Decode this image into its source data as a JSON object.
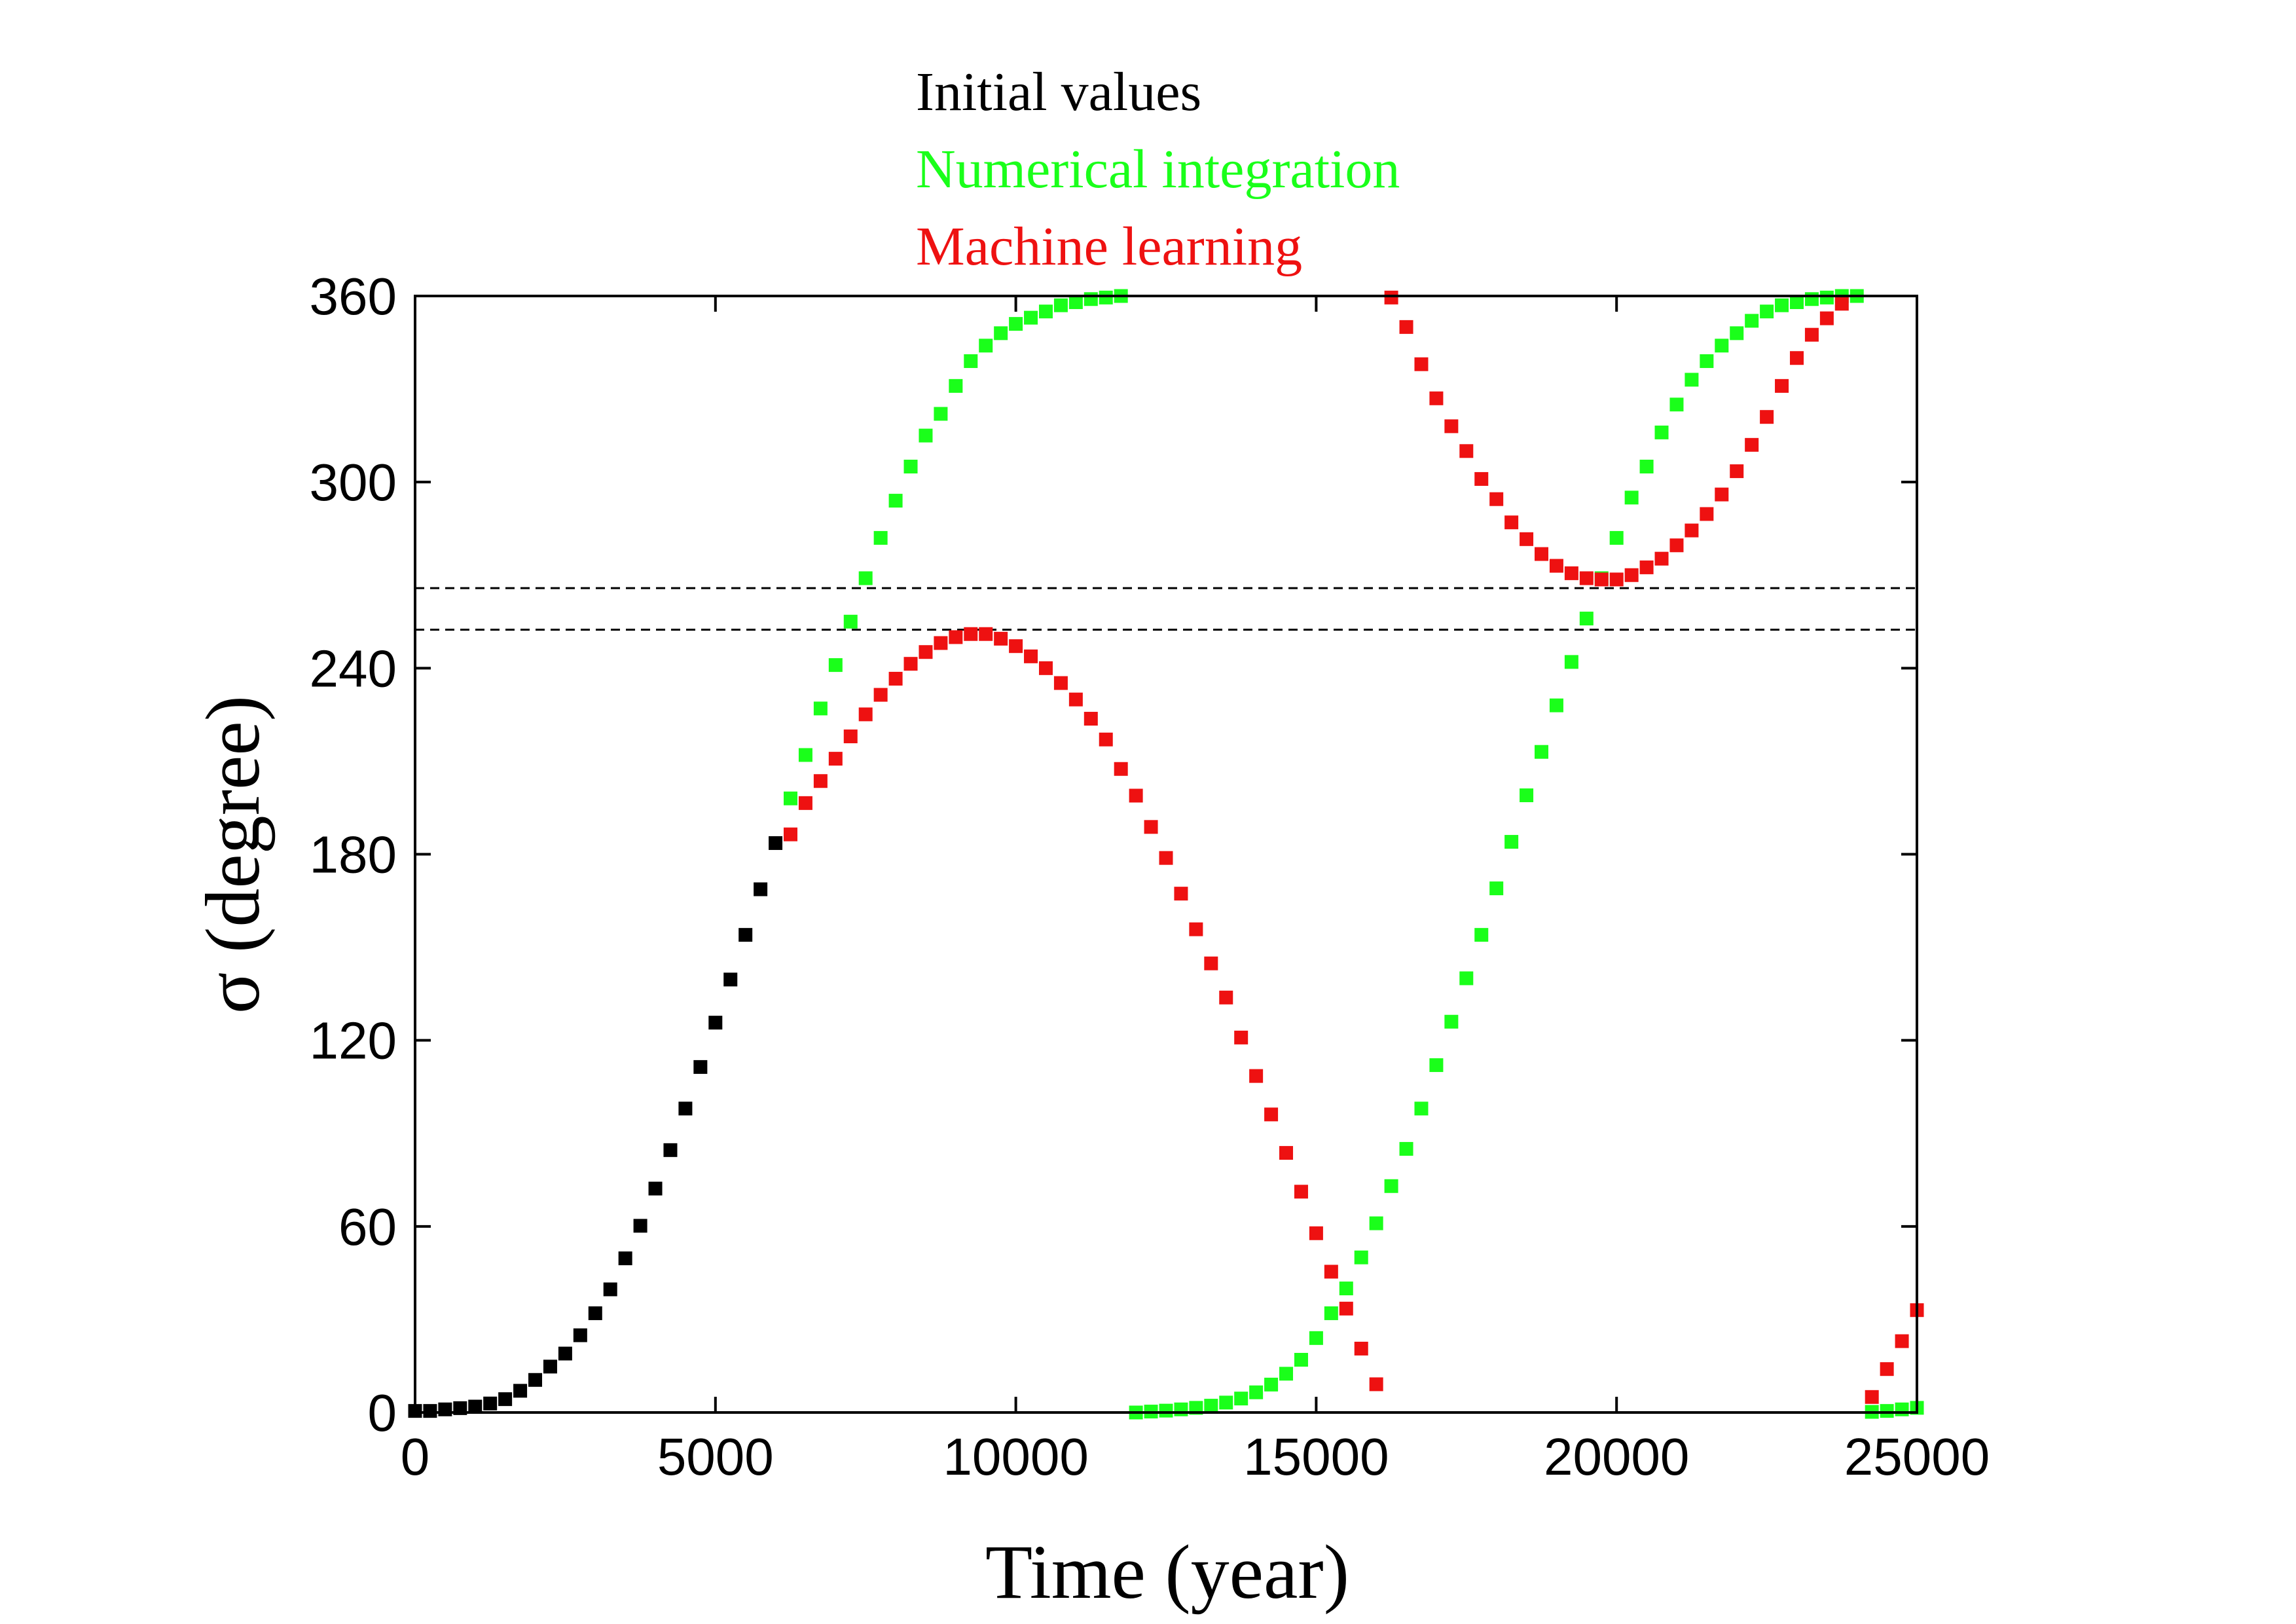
{
  "chart_data": {
    "type": "scatter",
    "x_label": "Time (year)",
    "y_label": "σ (degree)",
    "xlim": [
      0,
      25000
    ],
    "ylim": [
      0,
      360
    ],
    "xticks": [
      0,
      5000,
      10000,
      15000,
      20000,
      25000
    ],
    "yticks": [
      0,
      60,
      120,
      180,
      240,
      300,
      360
    ],
    "hlines": [
      252.4,
      265.8
    ],
    "grid": false,
    "legend": "top",
    "series": [
      {
        "name": "Initial values",
        "color": "#000000",
        "x": [
          0,
          250,
          500,
          750,
          1000,
          1250,
          1500,
          1750,
          2000,
          2250,
          2500,
          2750,
          3000,
          3250,
          3500,
          3750,
          4000,
          4250,
          4500,
          4750,
          5000,
          5250,
          5500,
          5750,
          6000
        ],
        "values": [
          0.5,
          0.5,
          1,
          1.4,
          1.9,
          2.9,
          4.3,
          7,
          10.5,
          14.8,
          19,
          24.9,
          32,
          39.7,
          49.7,
          60.2,
          72.2,
          84.6,
          98,
          111.4,
          125.7,
          139.6,
          154,
          168.7,
          183.6
        ]
      },
      {
        "name": "Numerical integration",
        "color": "#1aff1a",
        "x": [
          6250,
          6500,
          6750,
          7000,
          7250,
          7500,
          7750,
          8000,
          8250,
          8500,
          8750,
          9000,
          9250,
          9500,
          9750,
          10000,
          10250,
          10500,
          10750,
          11000,
          11250,
          11500,
          11750,
          12000,
          12250,
          12500,
          12750,
          13000,
          13250,
          13500,
          13750,
          14000,
          14250,
          14500,
          14750,
          15000,
          15250,
          15500,
          15750,
          16000,
          16250,
          16500,
          16750,
          17000,
          17250,
          17500,
          17750,
          18000,
          18250,
          18500,
          18750,
          19000,
          19250,
          19500,
          19750,
          20000,
          20250,
          20500,
          20750,
          21000,
          21250,
          21500,
          21750,
          22000,
          22250,
          22500,
          22750,
          23000,
          23250,
          23500,
          23750,
          24000,
          24250,
          24500,
          24750,
          25000
        ],
        "values": [
          198,
          212,
          227,
          241,
          255,
          269,
          282,
          294,
          305,
          315,
          322,
          331,
          339,
          344,
          348,
          351,
          353,
          355,
          357,
          358,
          359,
          359.5,
          360,
          0,
          0.3,
          0.6,
          1,
          1.5,
          2.2,
          3.2,
          4.5,
          6.5,
          9,
          12.5,
          17,
          24,
          32,
          40,
          50,
          61,
          73,
          85,
          98,
          112,
          126,
          140,
          154,
          169,
          184,
          199,
          213,
          228,
          242,
          256,
          269,
          282,
          295,
          305,
          316,
          325,
          333,
          339,
          344,
          348,
          352,
          355,
          357,
          358,
          359,
          359.5,
          360,
          360,
          0.2,
          0.5,
          1,
          1.5
        ]
      },
      {
        "name": "Machine learning",
        "color": "#ee1111",
        "x": [
          6250,
          6500,
          6750,
          7000,
          7250,
          7500,
          7750,
          8000,
          8250,
          8500,
          8750,
          9000,
          9250,
          9500,
          9750,
          10000,
          10250,
          10500,
          10750,
          11000,
          11250,
          11500,
          11750,
          12000,
          12250,
          12500,
          12750,
          13000,
          13250,
          13500,
          13750,
          14000,
          14250,
          14500,
          14750,
          15000,
          15250,
          15500,
          15750,
          16000,
          16250,
          16500,
          16750,
          17000,
          17250,
          17500,
          17750,
          18000,
          18250,
          18500,
          18750,
          19000,
          19250,
          19500,
          19750,
          20000,
          20250,
          20500,
          20750,
          21000,
          21250,
          21500,
          21750,
          22000,
          22250,
          22500,
          22750,
          23000,
          23250,
          23500,
          23750,
          24250,
          24500,
          24750,
          25000
        ],
        "values": [
          186.4,
          196.5,
          203.6,
          210.8,
          218,
          225.1,
          231.4,
          236.6,
          241.4,
          245.2,
          248.1,
          250,
          251,
          251,
          249.5,
          247.1,
          243.8,
          240,
          235.2,
          229.9,
          223.7,
          217,
          207.5,
          198.9,
          188.8,
          178.8,
          167.3,
          155.8,
          144.8,
          133.8,
          120.9,
          108.5,
          96.1,
          83.7,
          71.2,
          57.8,
          45.4,
          33.5,
          20.6,
          9.1,
          359.5,
          350,
          338,
          327,
          318,
          310,
          301,
          294.5,
          287,
          281.6,
          276.8,
          273,
          270.6,
          269,
          268.6,
          268.6,
          270,
          272.5,
          275.3,
          279.6,
          284.4,
          289.7,
          296,
          303.5,
          312,
          321,
          331,
          340,
          347.5,
          352.8,
          357.5,
          5,
          14,
          23,
          33
        ]
      }
    ]
  }
}
